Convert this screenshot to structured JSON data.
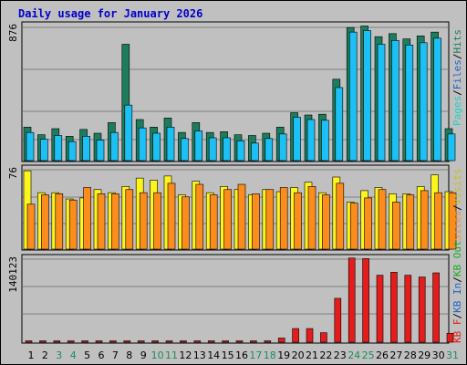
{
  "title": "Daily usage for January 2026",
  "colors": {
    "pages": "#1c7c5c",
    "files": "#1cc0f4",
    "hits": "#1c7c5c",
    "visits": "#fcf41c",
    "sites": "#fc8c1c",
    "kb_in": "#1c64c4",
    "kb_out": "#1cac1c",
    "kb_f": "#e41c1c",
    "weekend_label": "#1c8c5c",
    "grid": "#808080"
  },
  "chart_data": [
    {
      "type": "bar",
      "panel": "hits-files-pages",
      "ymax": 876,
      "ymax_label": "876",
      "x": [
        "1",
        "2",
        "3",
        "4",
        "5",
        "6",
        "7",
        "8",
        "9",
        "10",
        "11",
        "12",
        "13",
        "14",
        "15",
        "16",
        "17",
        "18",
        "19",
        "20",
        "21",
        "22",
        "23",
        "24",
        "25",
        "26",
        "27",
        "28",
        "29",
        "30",
        "31"
      ],
      "weekend_days": [
        3,
        4,
        10,
        11,
        17,
        18,
        24,
        25,
        31
      ],
      "legend": [
        "Hits",
        "Files",
        "Pages"
      ],
      "series": [
        {
          "name": "Hits",
          "values": [
            220,
            170,
            210,
            160,
            205,
            180,
            250,
            765,
            270,
            220,
            280,
            185,
            250,
            185,
            190,
            170,
            165,
            180,
            220,
            315,
            300,
            305,
            535,
            875,
            885,
            815,
            835,
            800,
            820,
            845,
            210
          ]
        },
        {
          "name": "Files",
          "values": [
            185,
            140,
            165,
            125,
            160,
            135,
            185,
            365,
            215,
            180,
            220,
            145,
            195,
            150,
            150,
            130,
            115,
            145,
            175,
            285,
            270,
            265,
            480,
            845,
            855,
            765,
            790,
            760,
            775,
            805,
            175
          ]
        },
        {
          "name": "Pages",
          "values": [
            180,
            130,
            150,
            120,
            145,
            120,
            190,
            320,
            205,
            165,
            205,
            145,
            180,
            135,
            135,
            130,
            110,
            120,
            175,
            285,
            255,
            260,
            470,
            835,
            850,
            770,
            810,
            770,
            790,
            805,
            165
          ]
        }
      ]
    },
    {
      "type": "bar",
      "panel": "visits-sites",
      "ymax": 76,
      "ymax_label": "76",
      "legend": [
        "Visits",
        "Sites"
      ],
      "series": [
        {
          "name": "Visits",
          "values": [
            75,
            54,
            54,
            48,
            49,
            57,
            54,
            60,
            68,
            66,
            70,
            52,
            65,
            54,
            60,
            57,
            52,
            57,
            55,
            59,
            64,
            54,
            69,
            45,
            56,
            59,
            53,
            53,
            60,
            71,
            55
          ]
        },
        {
          "name": "Sites",
          "values": [
            43,
            52,
            53,
            47,
            59,
            53,
            53,
            57,
            54,
            54,
            63,
            50,
            62,
            52,
            57,
            62,
            53,
            57,
            59,
            54,
            60,
            52,
            63,
            44,
            49,
            57,
            45,
            52,
            56,
            54,
            54
          ]
        }
      ]
    },
    {
      "type": "bar",
      "panel": "kbf-kbin-kbout",
      "ymax": 140123,
      "ymax_label": "140123",
      "legend": [
        "KB F",
        "KB In",
        "KB Out"
      ],
      "series": [
        {
          "name": "KB F",
          "values": [
            1000,
            1000,
            1000,
            1000,
            1000,
            1000,
            1000,
            1000,
            1000,
            1000,
            1000,
            1000,
            1000,
            1000,
            1000,
            1000,
            1000,
            1000,
            7000,
            23000,
            23000,
            16000,
            74000,
            142000,
            141000,
            113000,
            118000,
            113000,
            110000,
            117000,
            15000
          ]
        }
      ]
    }
  ]
}
